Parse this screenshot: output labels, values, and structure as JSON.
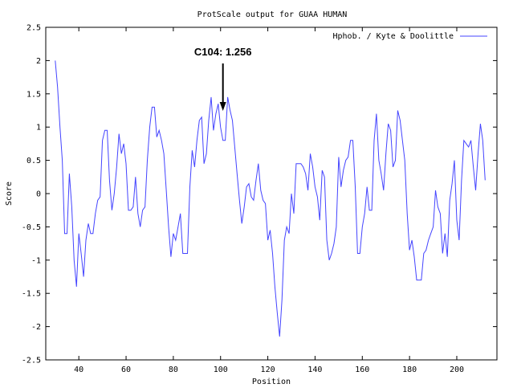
{
  "chart_data": {
    "type": "line",
    "title": "ProtScale output for GUAA HUMAN",
    "xlabel": "Position",
    "ylabel": "Score",
    "xlim": [
      26,
      217
    ],
    "ylim": [
      -2.5,
      2.5
    ],
    "x_ticks": [
      40,
      60,
      80,
      100,
      120,
      140,
      160,
      180,
      200
    ],
    "y_ticks": [
      -2.5,
      -2,
      -1.5,
      -1,
      -0.5,
      0,
      0.5,
      1,
      1.5,
      2,
      2.5
    ],
    "x_tick_labels": [
      "40",
      "60",
      "80",
      "100",
      "120",
      "140",
      "160",
      "180",
      "200"
    ],
    "y_tick_labels": [
      "-2.5",
      "-2",
      "-1.5",
      "-1",
      "-0.5",
      "0",
      "0.5",
      "1",
      "1.5",
      "2",
      "2.5"
    ],
    "grid": false,
    "legend_position": "top-right",
    "series": [
      {
        "name": "Hphob. / Kyte & Doolittle",
        "color": "#4444ff",
        "x": [
          30,
          31,
          32,
          33,
          34,
          35,
          36,
          37,
          38,
          39,
          40,
          41,
          42,
          43,
          44,
          45,
          46,
          47,
          48,
          49,
          50,
          51,
          52,
          53,
          54,
          55,
          56,
          57,
          58,
          59,
          60,
          61,
          62,
          63,
          64,
          65,
          66,
          67,
          68,
          69,
          70,
          71,
          72,
          73,
          74,
          75,
          76,
          77,
          78,
          79,
          80,
          81,
          82,
          83,
          84,
          85,
          86,
          87,
          88,
          89,
          90,
          91,
          92,
          93,
          94,
          95,
          96,
          97,
          98,
          99,
          100,
          101,
          102,
          103,
          104,
          105,
          106,
          107,
          108,
          109,
          110,
          111,
          112,
          113,
          114,
          115,
          116,
          117,
          118,
          119,
          120,
          121,
          122,
          123,
          124,
          125,
          126,
          127,
          128,
          129,
          130,
          131,
          132,
          133,
          134,
          135,
          136,
          137,
          138,
          139,
          140,
          141,
          142,
          143,
          144,
          145,
          146,
          147,
          148,
          149,
          150,
          151,
          152,
          153,
          154,
          155,
          156,
          157,
          158,
          159,
          160,
          161,
          162,
          163,
          164,
          165,
          166,
          167,
          168,
          169,
          170,
          171,
          172,
          173,
          174,
          175,
          176,
          177,
          178,
          179,
          180,
          181,
          182,
          183,
          184,
          185,
          186,
          187,
          188,
          189,
          190,
          191,
          192,
          193,
          194,
          195,
          196,
          197,
          198,
          199,
          200,
          201,
          202,
          203,
          204,
          205,
          206,
          207,
          208,
          209,
          210,
          211,
          212
        ],
        "y": [
          2.0,
          1.6,
          1.0,
          0.5,
          -0.6,
          -0.6,
          0.3,
          -0.2,
          -1.0,
          -1.4,
          -0.6,
          -0.9,
          -1.25,
          -0.7,
          -0.45,
          -0.6,
          -0.6,
          -0.3,
          -0.1,
          -0.05,
          0.8,
          0.95,
          0.95,
          0.2,
          -0.25,
          0.0,
          0.4,
          0.9,
          0.6,
          0.75,
          0.45,
          -0.25,
          -0.25,
          -0.2,
          0.25,
          -0.3,
          -0.5,
          -0.25,
          -0.2,
          0.5,
          1.0,
          1.3,
          1.3,
          0.85,
          0.95,
          0.8,
          0.6,
          0.05,
          -0.5,
          -0.95,
          -0.6,
          -0.7,
          -0.5,
          -0.3,
          -0.9,
          -0.9,
          -0.9,
          0.1,
          0.65,
          0.4,
          0.8,
          1.1,
          1.15,
          0.45,
          0.6,
          1.1,
          1.45,
          0.95,
          1.2,
          1.35,
          1.0,
          0.8,
          0.8,
          1.45,
          1.256,
          1.1,
          0.7,
          0.3,
          -0.1,
          -0.45,
          -0.2,
          0.1,
          0.15,
          -0.05,
          -0.1,
          0.2,
          0.45,
          0.05,
          -0.1,
          -0.15,
          -0.7,
          -0.55,
          -0.9,
          -1.4,
          -1.8,
          -2.15,
          -1.6,
          -0.7,
          -0.5,
          -0.6,
          0.0,
          -0.3,
          0.45,
          0.45,
          0.45,
          0.4,
          0.3,
          0.05,
          0.6,
          0.4,
          0.1,
          -0.05,
          -0.4,
          0.35,
          0.25,
          -0.7,
          -1.0,
          -0.9,
          -0.75,
          -0.5,
          0.55,
          0.1,
          0.35,
          0.5,
          0.55,
          0.8,
          0.8,
          0.1,
          -0.9,
          -0.9,
          -0.5,
          -0.3,
          0.1,
          -0.25,
          -0.25,
          0.8,
          1.2,
          0.5,
          0.3,
          0.05,
          0.6,
          1.05,
          0.95,
          0.4,
          0.5,
          1.25,
          1.1,
          0.8,
          0.5,
          -0.3,
          -0.85,
          -0.7,
          -0.95,
          -1.3,
          -1.3,
          -1.3,
          -0.9,
          -0.85,
          -0.7,
          -0.6,
          -0.5,
          0.05,
          -0.2,
          -0.3,
          -0.9,
          -0.6,
          -0.95,
          -0.1,
          0.15,
          0.5,
          -0.4,
          -0.7,
          0.2,
          0.8,
          0.75,
          0.7,
          0.8,
          0.4,
          0.05,
          0.6,
          1.05,
          0.8,
          0.2
        ]
      }
    ],
    "annotations": [
      {
        "text": "C104: 1.256",
        "x": 101,
        "y": 1.256,
        "arrow": "down"
      }
    ]
  }
}
